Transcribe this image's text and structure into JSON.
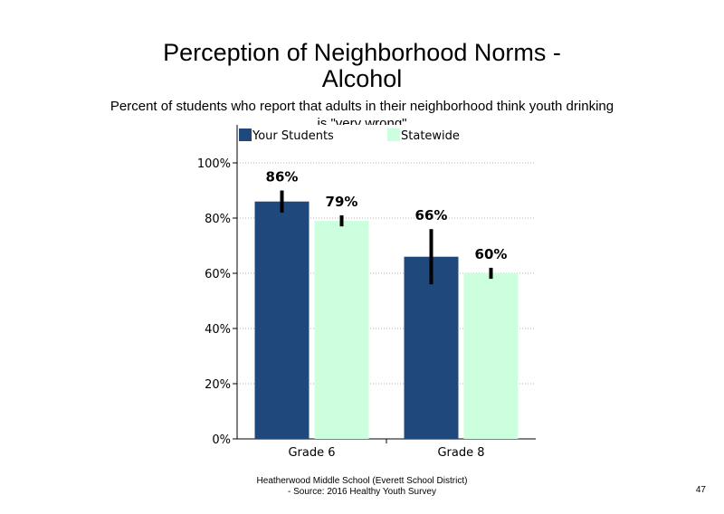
{
  "slide": {
    "title_line1": "Perception of Neighborhood Norms -",
    "title_line2": "Alcohol",
    "subtitle": "Percent of students who report that adults in their neighborhood think youth drinking is \"very wrong\"",
    "footer_line1": "Heatherwood Middle School (Everett School District)",
    "footer_line2": "- Source: 2016 Healthy Youth Survey",
    "page_number": "47"
  },
  "chart_data": {
    "type": "bar",
    "categories": [
      "Grade 6",
      "Grade 8"
    ],
    "series": [
      {
        "name": "Your Students",
        "values": [
          86,
          66
        ],
        "labels": [
          "86%",
          "66%"
        ],
        "error": [
          [
            82,
            90
          ],
          [
            56,
            76
          ]
        ],
        "color": "#1f497d"
      },
      {
        "name": "Statewide",
        "values": [
          79,
          60
        ],
        "labels": [
          "79%",
          "60%"
        ],
        "error": [
          [
            77,
            81
          ],
          [
            58,
            62
          ]
        ],
        "color": "#ccffdd"
      }
    ],
    "y_ticks": [
      "0%",
      "20%",
      "40%",
      "60%",
      "80%",
      "100%"
    ],
    "ylim": [
      0,
      100
    ],
    "grid": true,
    "legend": "top",
    "error_bar_color": "#000000"
  }
}
